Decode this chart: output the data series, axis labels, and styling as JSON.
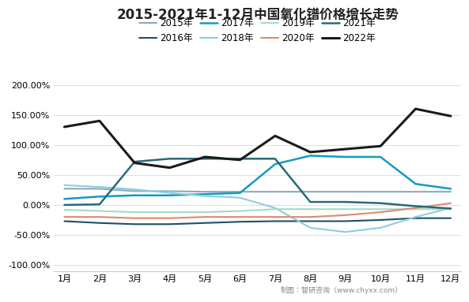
{
  "title": "2015-2021年1-12月中国氧化镨价格增长走势",
  "months": [
    "1月",
    "2月",
    "3月",
    "4月",
    "5月",
    "6月",
    "7月",
    "8月",
    "9月",
    "10月",
    "11月",
    "12月"
  ],
  "series": [
    {
      "name": "2015年",
      "color": "#8aabb8",
      "linewidth": 1.5,
      "data": [
        27,
        27,
        23,
        23,
        22,
        22,
        22,
        22,
        22,
        22,
        22,
        22
      ]
    },
    {
      "name": "2016年",
      "color": "#1d4f63",
      "linewidth": 1.5,
      "data": [
        -27,
        -30,
        -32,
        -32,
        -30,
        -28,
        -27,
        -27,
        -27,
        -25,
        -22,
        -22
      ]
    },
    {
      "name": "2017年",
      "color": "#1499c7",
      "linewidth": 1.8,
      "data": [
        10,
        14,
        16,
        16,
        18,
        20,
        68,
        82,
        80,
        80,
        35,
        27
      ]
    },
    {
      "name": "2018年",
      "color": "#90cce0",
      "linewidth": 1.5,
      "data": [
        33,
        30,
        26,
        20,
        15,
        12,
        -5,
        -38,
        -45,
        -38,
        -20,
        -5
      ]
    },
    {
      "name": "2019年",
      "color": "#a8d8c8",
      "linewidth": 1.5,
      "data": [
        -8,
        -10,
        -12,
        -12,
        -12,
        -10,
        -7,
        -7,
        -7,
        -7,
        -7,
        -7
      ]
    },
    {
      "name": "2020年",
      "color": "#e08870",
      "linewidth": 1.5,
      "data": [
        -20,
        -20,
        -22,
        -22,
        -20,
        -20,
        -20,
        -20,
        -17,
        -12,
        -5,
        3
      ]
    },
    {
      "name": "2021年",
      "color": "#2a6878",
      "linewidth": 1.8,
      "data": [
        0,
        1,
        72,
        77,
        77,
        77,
        77,
        5,
        5,
        3,
        -2,
        -6
      ]
    },
    {
      "name": "2022年",
      "color": "#1a1a1a",
      "linewidth": 2.2,
      "data": [
        130,
        140,
        70,
        62,
        80,
        75,
        115,
        88,
        93,
        98,
        160,
        148
      ]
    }
  ],
  "ylim": [
    -110,
    215
  ],
  "yticks": [
    -100,
    -50,
    0,
    50,
    100,
    150,
    200
  ],
  "ytick_labels": [
    "-100.00%",
    "-50.00%",
    "0.00%",
    "50.00%",
    "100.00%",
    "150.00%",
    "200.00%"
  ],
  "footer": "制图：智研咨询（www.chyxx.com）",
  "background_color": "#ffffff"
}
